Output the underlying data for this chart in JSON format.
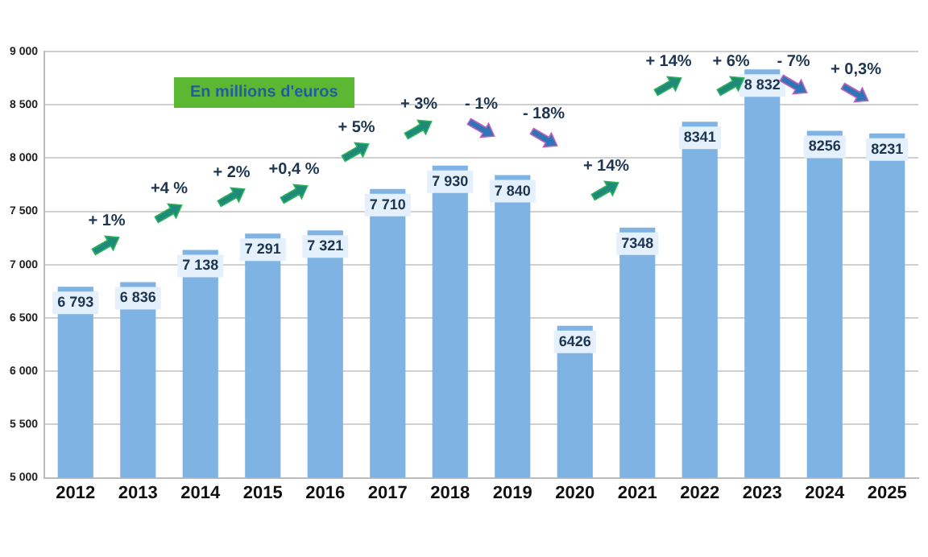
{
  "chart_data": {
    "type": "bar",
    "subtitle": "En millions d'euros",
    "categories": [
      "2012",
      "2013",
      "2014",
      "2015",
      "2016",
      "2017",
      "2018",
      "2019",
      "2020",
      "2021",
      "2022",
      "2023",
      "2024",
      "2025"
    ],
    "values": [
      6793,
      6836,
      7138,
      7291,
      7321,
      7710,
      7930,
      7840,
      6426,
      7348,
      8341,
      8832,
      8256,
      8231
    ],
    "value_labels": [
      "6 793",
      "6 836",
      "7 138",
      "7 291",
      "7 321",
      "7 710",
      "7 930",
      "7 840",
      "6426",
      "7348",
      "8341",
      "8 832",
      "8256",
      "8231"
    ],
    "color": "#7eb3e3",
    "ylim": [
      5000,
      9000
    ],
    "yticks": [
      {
        "value": 5000,
        "label": "5 000"
      },
      {
        "value": 5500,
        "label": "5 500"
      },
      {
        "value": 6000,
        "label": "6 000"
      },
      {
        "value": 6500,
        "label": "6 500"
      },
      {
        "value": 7000,
        "label": "7 000"
      },
      {
        "value": 7500,
        "label": "7 500"
      },
      {
        "value": 8000,
        "label": "8 000"
      },
      {
        "value": 8500,
        "label": "8 500"
      },
      {
        "value": 9000,
        "label": "9 000"
      }
    ],
    "grid": "y",
    "legend": false,
    "annotations": [
      "+ 1%",
      "+4 %",
      "+ 2%",
      "+0,4 %",
      "+ 5%",
      "+ 3%",
      "- 1%",
      "- 18%",
      "+ 14%",
      "+ 14%",
      "+ 6%",
      "- 7%",
      "+ 0,3%"
    ]
  }
}
